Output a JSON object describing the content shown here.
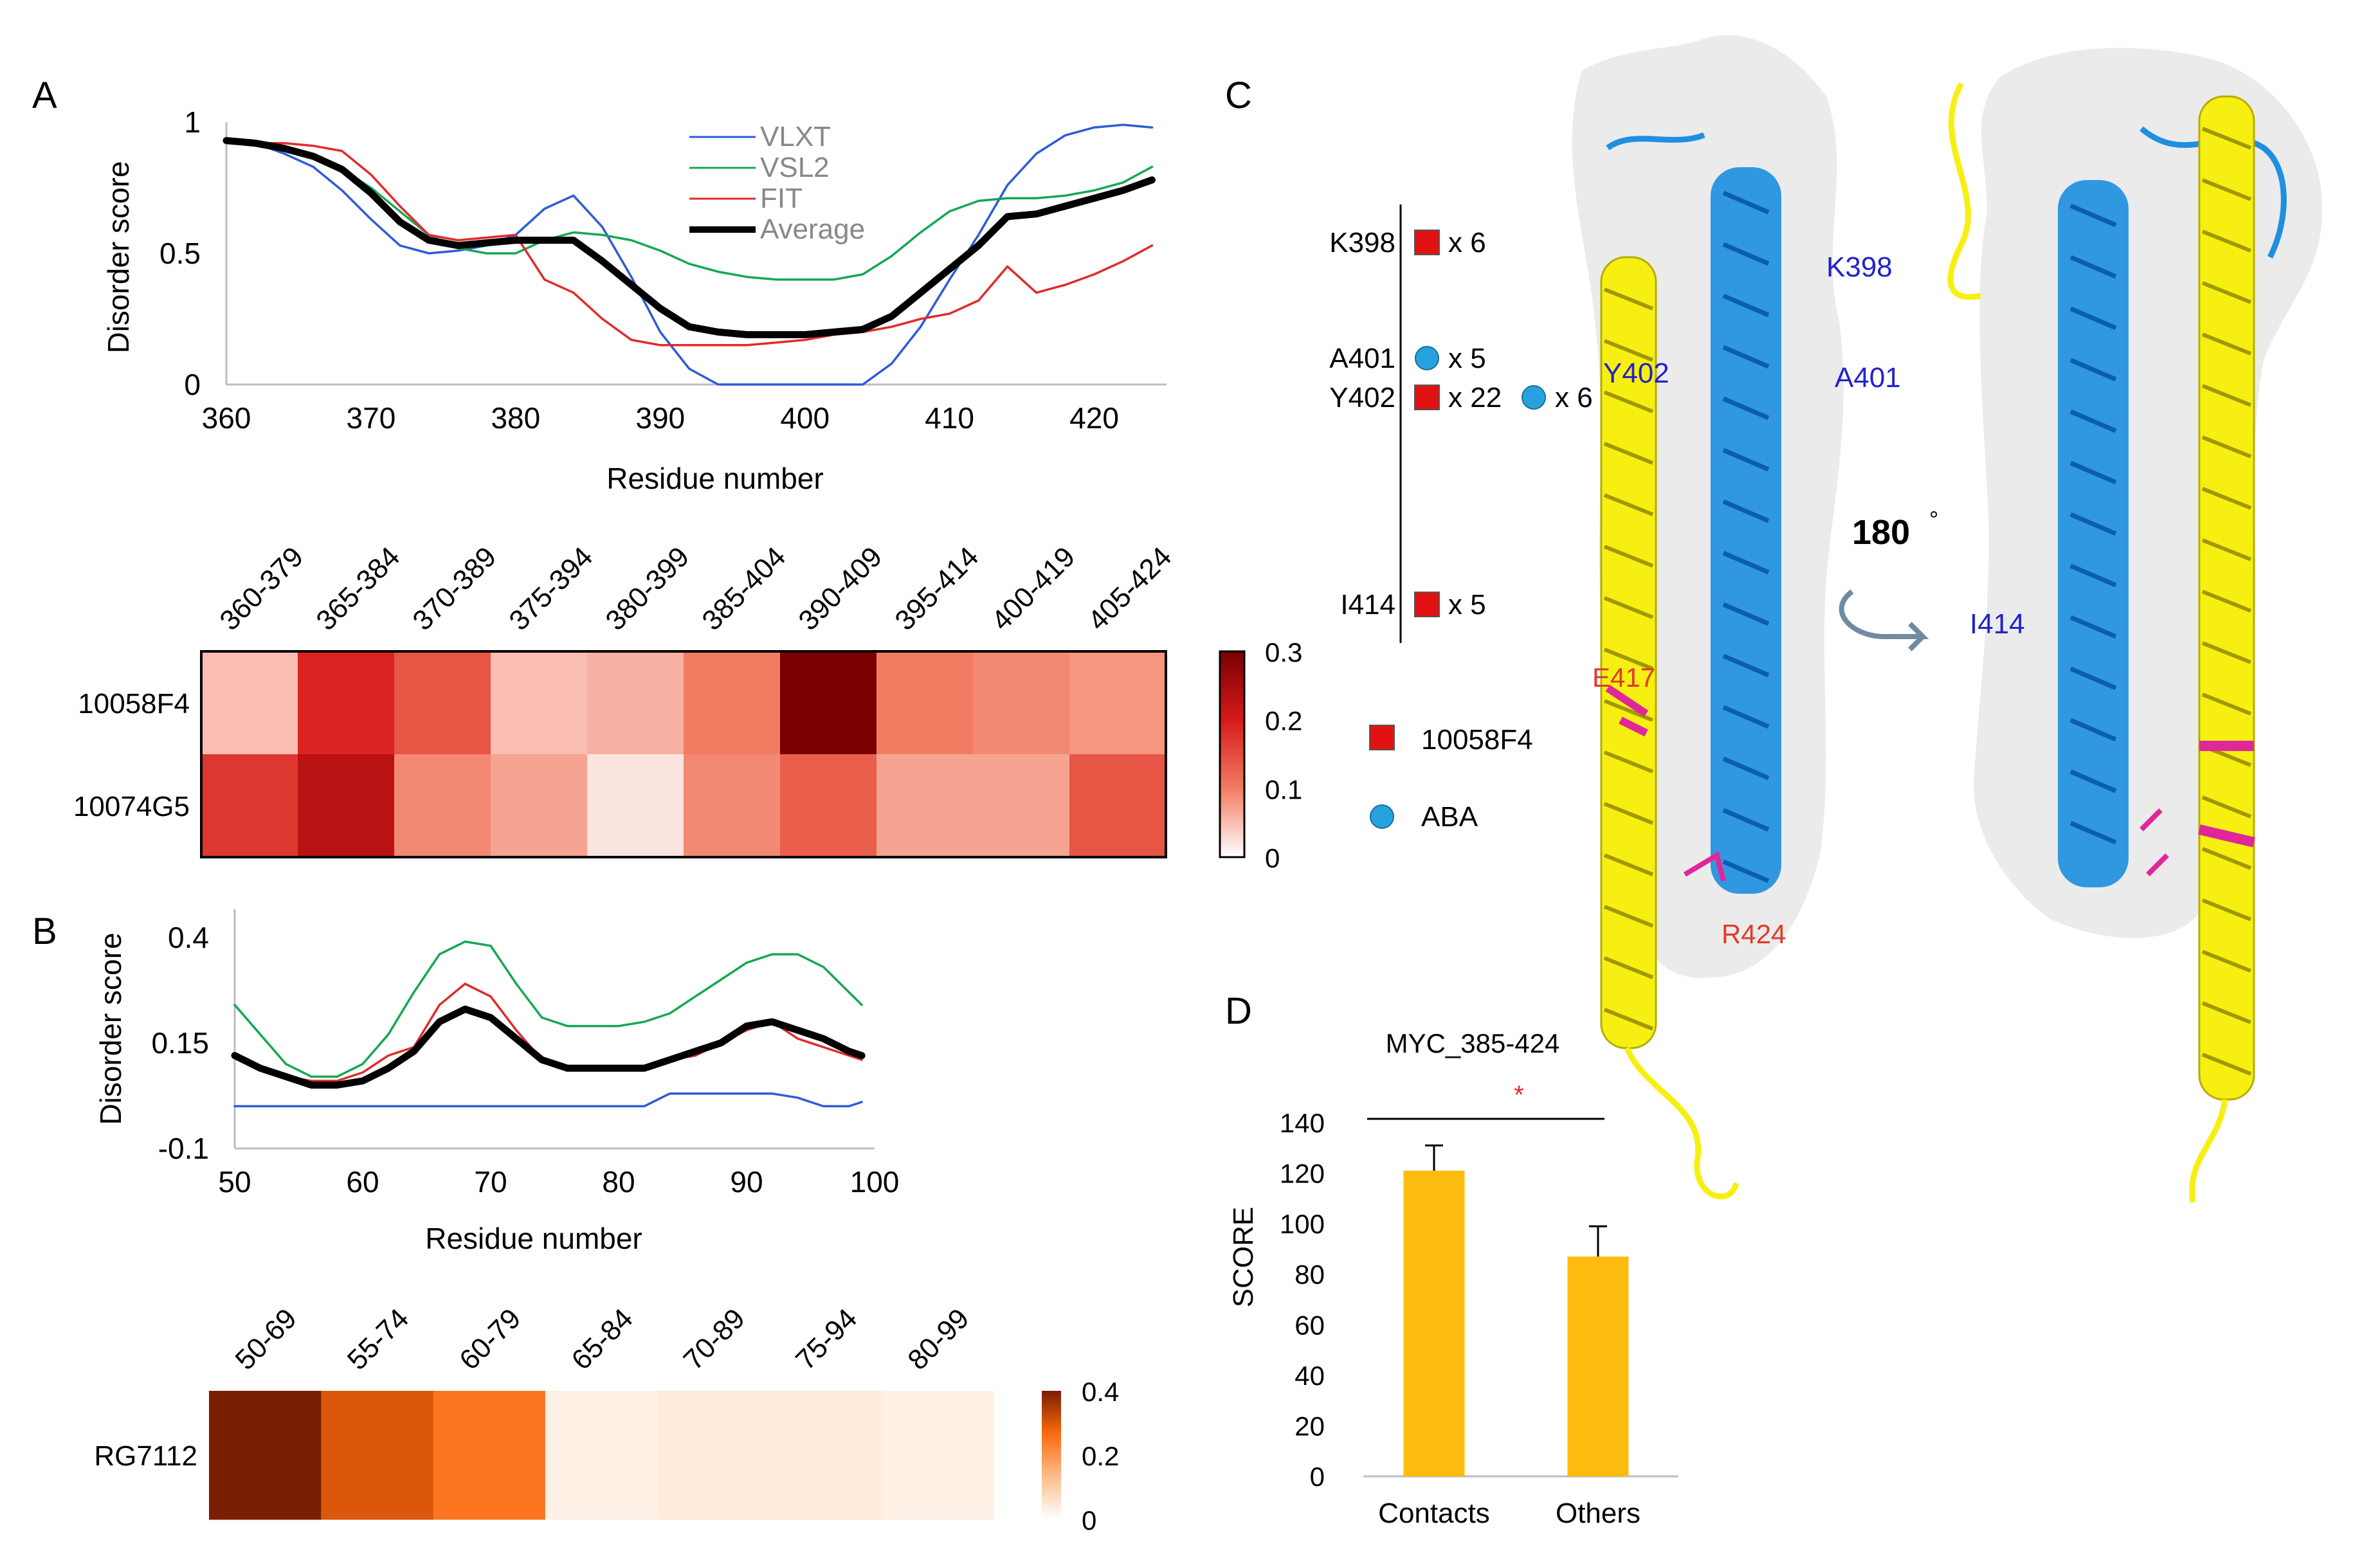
{
  "panels": {
    "A": {
      "letter": "A",
      "chart_data": {
        "type": "line",
        "ylabel": "Disorder score",
        "xlabel": "Residue number",
        "xlim": [
          360,
          425
        ],
        "ylim": [
          0,
          1
        ],
        "xticks": [
          360,
          370,
          380,
          390,
          400,
          410,
          420
        ],
        "yticks": [
          0,
          0.5,
          1
        ],
        "ytick_labels": [
          "0",
          "0.5",
          "1"
        ],
        "legend": [
          "VLXT",
          "VSL2",
          "FIT",
          "Average"
        ],
        "series": [
          {
            "name": "VLXT",
            "color": "#2e5bd8",
            "x": [
              360,
              362,
              364,
              366,
              368,
              370,
              372,
              374,
              376,
              378,
              380,
              382,
              384,
              386,
              388,
              390,
              392,
              394,
              396,
              398,
              400,
              402,
              404,
              406,
              408,
              410,
              412,
              414,
              416,
              418,
              420,
              422,
              424
            ],
            "y": [
              0.93,
              0.92,
              0.88,
              0.83,
              0.74,
              0.63,
              0.53,
              0.5,
              0.51,
              0.53,
              0.57,
              0.67,
              0.72,
              0.6,
              0.41,
              0.2,
              0.06,
              0.0,
              0.0,
              0.0,
              0.0,
              0.0,
              0.0,
              0.08,
              0.22,
              0.4,
              0.57,
              0.76,
              0.88,
              0.95,
              0.98,
              0.99,
              0.98
            ]
          },
          {
            "name": "VSL2",
            "color": "#15a852",
            "x": [
              360,
              362,
              364,
              366,
              368,
              370,
              372,
              374,
              376,
              378,
              380,
              382,
              384,
              386,
              388,
              390,
              392,
              394,
              396,
              398,
              400,
              402,
              404,
              406,
              408,
              410,
              412,
              414,
              416,
              418,
              420,
              422,
              424
            ],
            "y": [
              0.93,
              0.91,
              0.89,
              0.86,
              0.82,
              0.75,
              0.66,
              0.57,
              0.52,
              0.5,
              0.5,
              0.55,
              0.58,
              0.57,
              0.55,
              0.51,
              0.46,
              0.43,
              0.41,
              0.4,
              0.4,
              0.4,
              0.42,
              0.49,
              0.58,
              0.66,
              0.7,
              0.71,
              0.71,
              0.72,
              0.74,
              0.77,
              0.83
            ]
          },
          {
            "name": "FIT",
            "color": "#e02b2b",
            "x": [
              360,
              362,
              364,
              366,
              368,
              370,
              372,
              374,
              376,
              378,
              380,
              382,
              384,
              386,
              388,
              390,
              392,
              394,
              396,
              398,
              400,
              402,
              404,
              406,
              408,
              410,
              412,
              414,
              416,
              418,
              420,
              422,
              424
            ],
            "y": [
              0.92,
              0.92,
              0.92,
              0.91,
              0.89,
              0.8,
              0.68,
              0.57,
              0.55,
              0.56,
              0.57,
              0.4,
              0.35,
              0.25,
              0.17,
              0.15,
              0.15,
              0.15,
              0.15,
              0.16,
              0.17,
              0.19,
              0.2,
              0.22,
              0.25,
              0.27,
              0.32,
              0.45,
              0.35,
              0.38,
              0.42,
              0.47,
              0.53
            ]
          },
          {
            "name": "Average",
            "color": "#000000",
            "x": [
              360,
              362,
              364,
              366,
              368,
              370,
              372,
              374,
              376,
              378,
              380,
              382,
              384,
              386,
              388,
              390,
              392,
              394,
              396,
              398,
              400,
              402,
              404,
              406,
              408,
              410,
              412,
              414,
              416,
              418,
              420,
              422,
              424
            ],
            "y": [
              0.93,
              0.92,
              0.9,
              0.87,
              0.82,
              0.73,
              0.62,
              0.55,
              0.53,
              0.54,
              0.55,
              0.55,
              0.55,
              0.47,
              0.38,
              0.29,
              0.22,
              0.2,
              0.19,
              0.19,
              0.19,
              0.2,
              0.21,
              0.26,
              0.35,
              0.44,
              0.53,
              0.64,
              0.65,
              0.68,
              0.71,
              0.74,
              0.78
            ]
          }
        ]
      },
      "heatmap": {
        "type": "heatmap",
        "columns": [
          "360-379",
          "365-384",
          "370-389",
          "375-394",
          "380-399",
          "385-404",
          "390-409",
          "395-414",
          "400-419",
          "405-424"
        ],
        "rows": [
          {
            "label": "10058F4",
            "values": [
              0.05,
              0.19,
              0.14,
              0.05,
              0.06,
              0.1,
              0.3,
              0.1,
              0.09,
              0.08
            ]
          },
          {
            "label": "10074G5",
            "values": [
              0.17,
              0.23,
              0.09,
              0.07,
              0.02,
              0.09,
              0.13,
              0.07,
              0.07,
              0.14
            ]
          }
        ],
        "scale": {
          "min": 0,
          "max": 0.3,
          "ticks": [
            "0.3",
            "0.2",
            "0.1",
            "0"
          ],
          "colors": [
            "#ffffff",
            "#f27c62",
            "#d61a1a",
            "#7a0000"
          ]
        }
      }
    },
    "B": {
      "letter": "B",
      "chart_data": {
        "type": "line",
        "ylabel": "Disorder score",
        "xlabel": "Residue number",
        "xlim": [
          50,
          100
        ],
        "ylim": [
          -0.1,
          0.45
        ],
        "xticks": [
          50,
          60,
          70,
          80,
          90,
          100
        ],
        "yticks": [
          -0.1,
          0.15,
          0.4
        ],
        "ytick_labels": [
          "-0.1",
          "0.15",
          "0.4"
        ],
        "series": [
          {
            "name": "VLXT",
            "color": "#2e5bd8",
            "x": [
              50,
              52,
              54,
              56,
              58,
              60,
              62,
              64,
              66,
              68,
              70,
              72,
              74,
              76,
              78,
              80,
              82,
              84,
              86,
              88,
              90,
              92,
              94,
              96,
              98,
              99
            ],
            "y": [
              0.0,
              0.0,
              0.0,
              0.0,
              0.0,
              0.0,
              0.0,
              0.0,
              0.0,
              0.0,
              0.0,
              0.0,
              0.0,
              0.0,
              0.0,
              0.0,
              0.0,
              0.03,
              0.03,
              0.03,
              0.03,
              0.03,
              0.02,
              0.0,
              0.0,
              0.01
            ]
          },
          {
            "name": "VSL2",
            "color": "#15a852",
            "x": [
              50,
              52,
              54,
              56,
              58,
              60,
              62,
              64,
              66,
              68,
              70,
              72,
              74,
              76,
              78,
              80,
              82,
              84,
              86,
              88,
              90,
              92,
              94,
              96,
              98,
              99
            ],
            "y": [
              0.24,
              0.17,
              0.1,
              0.07,
              0.07,
              0.1,
              0.17,
              0.27,
              0.36,
              0.39,
              0.38,
              0.29,
              0.21,
              0.19,
              0.19,
              0.19,
              0.2,
              0.22,
              0.26,
              0.3,
              0.34,
              0.36,
              0.36,
              0.33,
              0.27,
              0.24
            ]
          },
          {
            "name": "FIT",
            "color": "#e02b2b",
            "x": [
              50,
              52,
              54,
              56,
              58,
              60,
              62,
              64,
              66,
              68,
              70,
              72,
              74,
              76,
              78,
              80,
              82,
              84,
              86,
              88,
              90,
              92,
              94,
              96,
              98,
              99
            ],
            "y": [
              0.12,
              0.09,
              0.07,
              0.06,
              0.06,
              0.08,
              0.12,
              0.14,
              0.24,
              0.29,
              0.26,
              0.18,
              0.11,
              0.09,
              0.09,
              0.09,
              0.09,
              0.11,
              0.12,
              0.15,
              0.18,
              0.2,
              0.16,
              0.14,
              0.12,
              0.11
            ]
          },
          {
            "name": "Average",
            "color": "#000000",
            "x": [
              50,
              52,
              54,
              56,
              58,
              60,
              62,
              64,
              66,
              68,
              70,
              72,
              74,
              76,
              78,
              80,
              82,
              84,
              86,
              88,
              90,
              92,
              94,
              96,
              98,
              99
            ],
            "y": [
              0.12,
              0.09,
              0.07,
              0.05,
              0.05,
              0.06,
              0.09,
              0.13,
              0.2,
              0.23,
              0.21,
              0.16,
              0.11,
              0.09,
              0.09,
              0.09,
              0.09,
              0.11,
              0.13,
              0.15,
              0.19,
              0.2,
              0.18,
              0.16,
              0.13,
              0.12
            ]
          }
        ]
      },
      "heatmap": {
        "type": "heatmap",
        "columns": [
          "50-69",
          "55-74",
          "60-79",
          "65-84",
          "70-89",
          "75-94",
          "80-99"
        ],
        "rows": [
          {
            "label": "RG7112",
            "values": [
              0.4,
              0.3,
              0.25,
              0.03,
              0.04,
              0.04,
              0.03
            ]
          }
        ],
        "scale": {
          "min": 0,
          "max": 0.4,
          "ticks": [
            "0.4",
            "0.2",
            "0"
          ],
          "colors": [
            "#ffffff",
            "#fbbd8a",
            "#fb6a10",
            "#7a1e00"
          ]
        }
      }
    },
    "C": {
      "letter": "C",
      "residues": [
        {
          "name": "K398",
          "markers": [
            {
              "shape": "square",
              "count": "x 6"
            }
          ]
        },
        {
          "name": "A401",
          "markers": [
            {
              "shape": "circle",
              "count": "x 5"
            }
          ]
        },
        {
          "name": "Y402",
          "markers": [
            {
              "shape": "square",
              "count": "x 22"
            },
            {
              "shape": "circle",
              "count": "x 6"
            }
          ]
        },
        {
          "name": "I414",
          "markers": [
            {
              "shape": "square",
              "count": "x 5"
            }
          ]
        }
      ],
      "legend": [
        {
          "shape": "square",
          "label": "10058F4"
        },
        {
          "shape": "circle",
          "label": "ABA"
        }
      ],
      "structure_labels": {
        "K398": "K398",
        "Y402": "Y402",
        "A401": "A401",
        "E417": "E417",
        "R424": "R424",
        "I414": "I414"
      },
      "rotation_label": "180",
      "rotation_unit": "°",
      "colors": {
        "square": "#e31212",
        "circle": "#26a3de",
        "helix_blue": "#1f8fe0",
        "helix_yellow": "#f7ef12",
        "magenta": "#e0279a",
        "label_blue": "#2222cc",
        "label_red": "#e03a2a"
      }
    },
    "D": {
      "letter": "D",
      "chart_data": {
        "type": "bar",
        "title": "MYC_385-424",
        "categories": [
          "Contacts",
          "Others"
        ],
        "values": [
          121,
          87
        ],
        "errors": [
          10,
          12
        ],
        "ylabel": "SCORE",
        "ylim": [
          0,
          140
        ],
        "yticks": [
          0,
          20,
          40,
          60,
          80,
          100,
          120,
          140
        ],
        "significance": "*",
        "bar_color": "#fdbb0f"
      }
    }
  }
}
